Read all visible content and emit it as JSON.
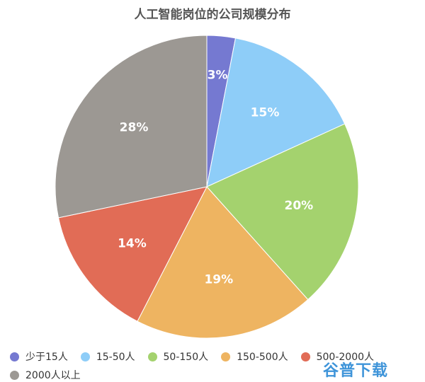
{
  "chart_data": {
    "type": "pie",
    "title": "人工智能岗位的公司规模分布",
    "slices": [
      {
        "label": "少于15人",
        "value": 3,
        "display": "3%",
        "color": "#7579d1"
      },
      {
        "label": "15-50人",
        "value": 15,
        "display": "15%",
        "color": "#8ecdf8"
      },
      {
        "label": "50-150人",
        "value": 20,
        "display": "20%",
        "color": "#a4d26e"
      },
      {
        "label": "150-500人",
        "value": 19,
        "display": "19%",
        "color": "#eeb461"
      },
      {
        "label": "500-2000人",
        "value": 14,
        "display": "14%",
        "color": "#e16c56"
      },
      {
        "label": "2000人以上",
        "value": 28,
        "display": "28%",
        "color": "#9c9893"
      }
    ],
    "legend_position": "bottom"
  },
  "watermark": "谷普下载"
}
